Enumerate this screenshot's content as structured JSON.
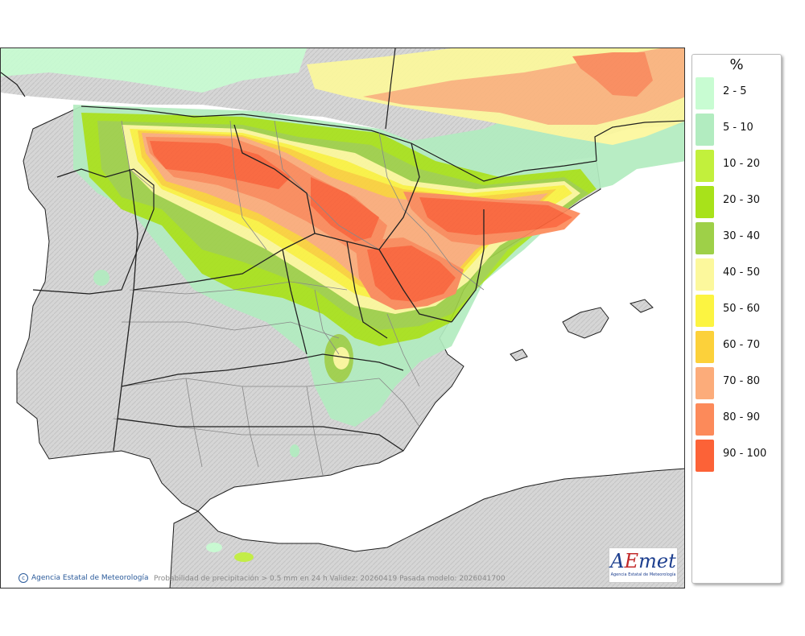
{
  "legend": {
    "unit": "%",
    "items": [
      {
        "label": "2 - 5",
        "color": "#c8fcd2"
      },
      {
        "label": "5 - 10",
        "color": "#b2ecc0"
      },
      {
        "label": "10 - 20",
        "color": "#c2f03c"
      },
      {
        "label": "20 - 30",
        "color": "#a8e21a"
      },
      {
        "label": "30 - 40",
        "color": "#9ed048"
      },
      {
        "label": "40 - 50",
        "color": "#fcf89c"
      },
      {
        "label": "50 - 60",
        "color": "#fcf441"
      },
      {
        "label": "60 - 70",
        "color": "#fcd13a"
      },
      {
        "label": "70 - 80",
        "color": "#fcac7a"
      },
      {
        "label": "80 - 90",
        "color": "#fc8a5a"
      },
      {
        "label": "90 - 100",
        "color": "#fc6237"
      }
    ]
  },
  "footer": {
    "credit": "Agencia Estatal de Meteorología",
    "caption": "Probabilidad de precipitación > 0.5 mm en 24 h Validez: 20260419 Pasada modelo: 2026041700"
  },
  "logo": {
    "word_a": "A",
    "word_e": "E",
    "word_rest": "met",
    "subtitle": "Agencia Estatal de Meteorología"
  },
  "colors": {
    "land": "#d4d4d4",
    "sea": "#ffffff",
    "border": "#1e1e1e",
    "region_border": "#888888"
  }
}
